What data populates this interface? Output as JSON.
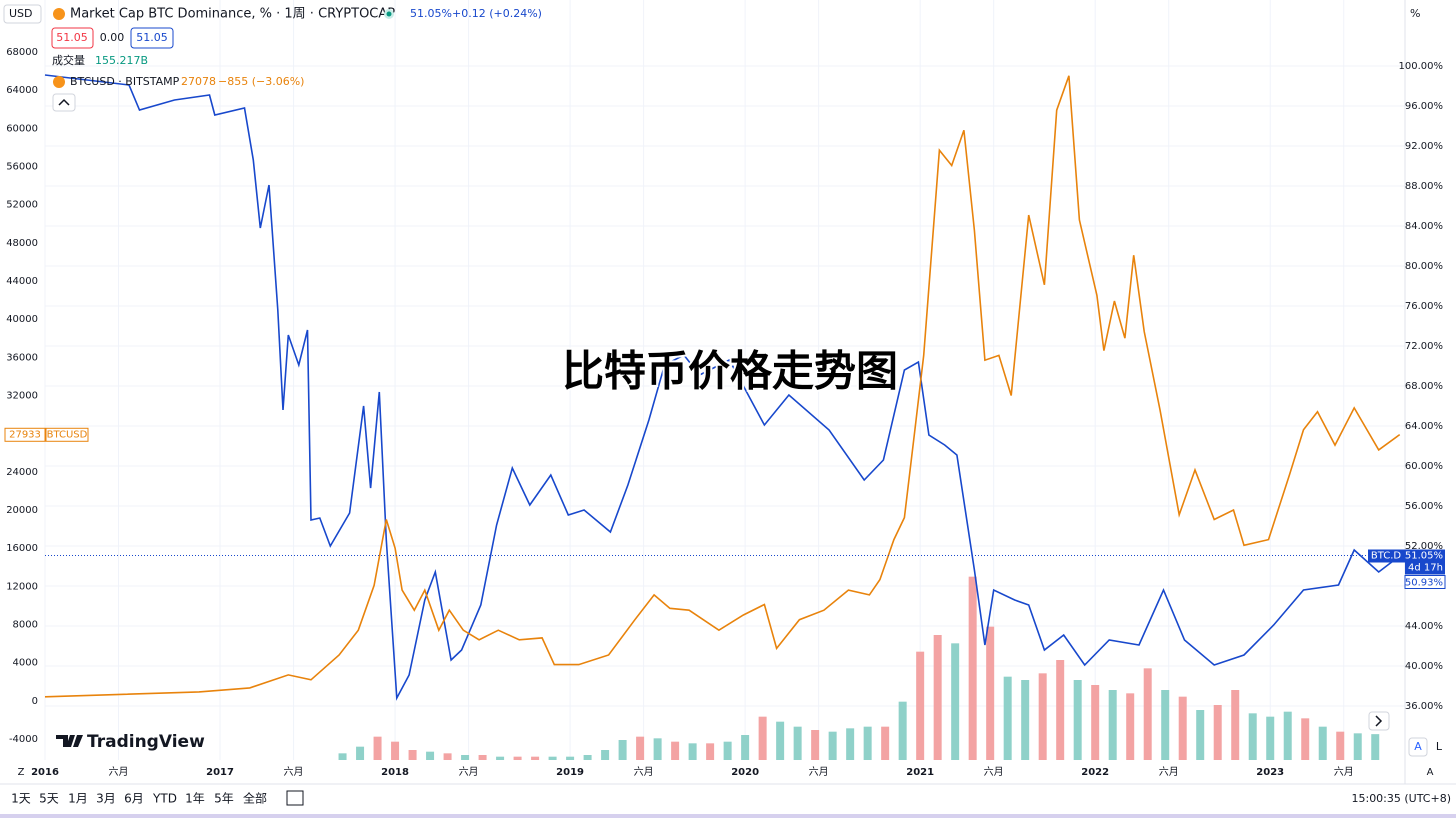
{
  "chart_data": {
    "type": "line",
    "title": "比特币价格走势图",
    "currency": "USD",
    "y2_unit": "%",
    "grid": true,
    "xlim": [
      2016.0,
      2023.77
    ],
    "xticks": [
      {
        "value": 2016.0,
        "label": "2016"
      },
      {
        "value": 2016.42,
        "label": "六月"
      },
      {
        "value": 2017.0,
        "label": "2017"
      },
      {
        "value": 2017.42,
        "label": "六月"
      },
      {
        "value": 2018.0,
        "label": "2018"
      },
      {
        "value": 2018.42,
        "label": "六月"
      },
      {
        "value": 2019.0,
        "label": "2019"
      },
      {
        "value": 2019.42,
        "label": "六月"
      },
      {
        "value": 2020.0,
        "label": "2020"
      },
      {
        "value": 2020.42,
        "label": "六月"
      },
      {
        "value": 2021.0,
        "label": "2021"
      },
      {
        "value": 2021.42,
        "label": "六月"
      },
      {
        "value": 2022.0,
        "label": "2022"
      },
      {
        "value": 2022.42,
        "label": "六月"
      },
      {
        "value": 2023.0,
        "label": "2023"
      },
      {
        "value": 2023.42,
        "label": "六月"
      }
    ],
    "ylim": [
      -6200,
      70300
    ],
    "yticks": [
      -4000,
      0,
      4000,
      8000,
      12000,
      16000,
      20000,
      24000,
      28000,
      32000,
      36000,
      40000,
      44000,
      48000,
      52000,
      56000,
      60000,
      64000,
      68000
    ],
    "y2lim": [
      30.6,
      103.6
    ],
    "y2ticks": [
      {
        "value": 36,
        "label": "36.00%"
      },
      {
        "value": 40,
        "label": "40.00%"
      },
      {
        "value": 44,
        "label": "44.00%"
      },
      {
        "value": 48,
        "label": "48.00%"
      },
      {
        "value": 52,
        "label": "52.00%"
      },
      {
        "value": 56,
        "label": "56.00%"
      },
      {
        "value": 60,
        "label": "60.00%"
      },
      {
        "value": 64,
        "label": "64.00%"
      },
      {
        "value": 68,
        "label": "68.00%"
      },
      {
        "value": 72,
        "label": "72.00%"
      },
      {
        "value": 76,
        "label": "76.00%"
      },
      {
        "value": 80,
        "label": "80.00%"
      },
      {
        "value": 84,
        "label": "84.00%"
      },
      {
        "value": 88,
        "label": "88.00%"
      },
      {
        "value": 92,
        "label": "92.00%"
      },
      {
        "value": 96,
        "label": "96.00%"
      },
      {
        "value": 100,
        "label": "100.00%"
      }
    ],
    "series": [
      {
        "name": "Market Cap BTC Dominance, % · 1周 · CRYPTOCAP",
        "color": "#1848cc",
        "axis": "y2",
        "x": [
          2016.0,
          2016.48,
          2016.54,
          2016.74,
          2016.94,
          2016.97,
          2017.14,
          2017.19,
          2017.23,
          2017.28,
          2017.33,
          2017.36,
          2017.39,
          2017.45,
          2017.5,
          2017.52,
          2017.57,
          2017.63,
          2017.74,
          2017.82,
          2017.86,
          2017.91,
          2017.95,
          2018.01,
          2018.08,
          2018.17,
          2018.23,
          2018.32,
          2018.38,
          2018.49,
          2018.58,
          2018.67,
          2018.77,
          2018.89,
          2018.99,
          2019.08,
          2019.23,
          2019.33,
          2019.45,
          2019.54,
          2019.65,
          2019.74,
          2019.91,
          2020.11,
          2020.25,
          2020.48,
          2020.68,
          2020.79,
          2020.91,
          2020.99,
          2021.05,
          2021.14,
          2021.21,
          2021.31,
          2021.37,
          2021.42,
          2021.54,
          2021.62,
          2021.71,
          2021.82,
          2021.94,
          2022.08,
          2022.25,
          2022.39,
          2022.51,
          2022.68,
          2022.85,
          2023.02,
          2023.19,
          2023.39,
          2023.48,
          2023.62,
          2023.74
        ],
        "values": [
          99.1,
          98.1,
          95.6,
          96.6,
          97.1,
          95.1,
          95.8,
          90.6,
          83.8,
          88.1,
          75.6,
          65.6,
          73.1,
          70.1,
          73.6,
          54.6,
          54.8,
          52.0,
          55.3,
          66.0,
          57.8,
          67.4,
          52.6,
          36.8,
          39.1,
          46.6,
          49.4,
          40.6,
          41.6,
          46.1,
          54.1,
          59.8,
          56.1,
          59.1,
          55.1,
          55.6,
          53.4,
          58.1,
          64.6,
          70.1,
          71.1,
          69.1,
          70.6,
          64.1,
          67.1,
          63.6,
          58.6,
          60.6,
          69.6,
          70.4,
          63.1,
          62.1,
          61.1,
          49.6,
          42.1,
          47.6,
          46.6,
          46.1,
          41.6,
          43.1,
          40.1,
          42.6,
          42.1,
          47.6,
          42.6,
          40.1,
          41.1,
          44.1,
          47.6,
          48.1,
          51.6,
          49.4,
          51.0
        ],
        "last_value": 51.05,
        "last_value_label": "51.05%",
        "tag": "BTC.D",
        "countdown": "4d 17h",
        "prev_close_label": "50.93%"
      },
      {
        "name": "BTCUSD · BITSTAMP",
        "color": "#e8830c",
        "x": [
          2016.0,
          2016.88,
          2017.17,
          2017.39,
          2017.52,
          2017.68,
          2017.79,
          2017.88,
          2017.95,
          2018.0,
          2018.04,
          2018.11,
          2018.17,
          2018.25,
          2018.31,
          2018.39,
          2018.48,
          2018.59,
          2018.71,
          2018.84,
          2018.91,
          2019.05,
          2019.22,
          2019.37,
          2019.48,
          2019.57,
          2019.68,
          2019.85,
          2019.99,
          2020.11,
          2020.18,
          2020.31,
          2020.45,
          2020.59,
          2020.71,
          2020.77,
          2020.85,
          2020.91,
          2020.97,
          2021.02,
          2021.11,
          2021.18,
          2021.25,
          2021.31,
          2021.37,
          2021.45,
          2021.52,
          2021.62,
          2021.71,
          2021.78,
          2021.85,
          2021.91,
          2022.01,
          2022.05,
          2022.11,
          2022.17,
          2022.22,
          2022.28,
          2022.37,
          2022.48,
          2022.57,
          2022.68,
          2022.79,
          2022.85,
          2022.99,
          2023.11,
          2023.19,
          2023.27,
          2023.37,
          2023.48,
          2023.62,
          2023.74
        ],
        "values": [
          420,
          940,
          1360,
          2720,
          2200,
          4800,
          7400,
          12100,
          19000,
          16000,
          11600,
          9500,
          11600,
          7400,
          9500,
          7400,
          6400,
          7400,
          6400,
          6600,
          3800,
          3800,
          4800,
          8500,
          11100,
          9700,
          9500,
          7400,
          9000,
          10100,
          5500,
          8500,
          9500,
          11600,
          11100,
          12700,
          16900,
          19200,
          28400,
          36200,
          57700,
          56100,
          59800,
          49300,
          35700,
          36200,
          32000,
          50900,
          43600,
          61900,
          65500,
          50400,
          42500,
          36700,
          41900,
          38000,
          46700,
          38700,
          30500,
          19500,
          24200,
          19000,
          20000,
          16300,
          16900,
          23700,
          28400,
          30300,
          26800,
          30700,
          26300,
          27900
        ],
        "last_value": 27933,
        "tag": "BTCUSD"
      }
    ],
    "volume": {
      "name": "成交量",
      "last_label": "155.217B",
      "ylim": [
        0,
        1800
      ],
      "x": [
        2017.7,
        2017.8,
        2017.9,
        2018.0,
        2018.1,
        2018.2,
        2018.3,
        2018.4,
        2018.5,
        2018.6,
        2018.7,
        2018.8,
        2018.9,
        2019.0,
        2019.1,
        2019.2,
        2019.3,
        2019.4,
        2019.5,
        2019.6,
        2019.7,
        2019.8,
        2019.9,
        2020.0,
        2020.1,
        2020.2,
        2020.3,
        2020.4,
        2020.5,
        2020.6,
        2020.7,
        2020.8,
        2020.9,
        2021.0,
        2021.1,
        2021.2,
        2021.3,
        2021.4,
        2021.5,
        2021.6,
        2021.7,
        2021.8,
        2021.9,
        2022.0,
        2022.1,
        2022.2,
        2022.3,
        2022.4,
        2022.5,
        2022.6,
        2022.7,
        2022.8,
        2022.9,
        2023.0,
        2023.1,
        2023.2,
        2023.3,
        2023.4,
        2023.5,
        2023.6
      ],
      "values": [
        40,
        80,
        140,
        110,
        60,
        50,
        40,
        30,
        30,
        20,
        20,
        20,
        20,
        20,
        30,
        60,
        120,
        140,
        130,
        110,
        100,
        100,
        110,
        150,
        260,
        230,
        200,
        180,
        170,
        190,
        200,
        200,
        350,
        650,
        750,
        700,
        1100,
        800,
        500,
        480,
        520,
        600,
        480,
        450,
        420,
        400,
        550,
        420,
        380,
        300,
        330,
        420,
        280,
        260,
        290,
        250,
        200,
        170,
        160,
        155.217
      ],
      "colors": [
        "#8fd1c9",
        "#8fd1c9",
        "#f3a3a3",
        "#f3a3a3",
        "#f3a3a3",
        "#8fd1c9",
        "#f3a3a3",
        "#8fd1c9",
        "#f3a3a3",
        "#8fd1c9",
        "#f3a3a3",
        "#f3a3a3",
        "#8fd1c9",
        "#8fd1c9",
        "#8fd1c9",
        "#8fd1c9",
        "#8fd1c9",
        "#f3a3a3",
        "#8fd1c9",
        "#f3a3a3",
        "#8fd1c9",
        "#f3a3a3",
        "#8fd1c9",
        "#8fd1c9",
        "#f3a3a3",
        "#8fd1c9",
        "#8fd1c9",
        "#f3a3a3",
        "#8fd1c9",
        "#8fd1c9",
        "#8fd1c9",
        "#f3a3a3",
        "#8fd1c9",
        "#f3a3a3",
        "#f3a3a3",
        "#8fd1c9",
        "#f3a3a3",
        "#f3a3a3",
        "#8fd1c9",
        "#8fd1c9",
        "#f3a3a3",
        "#f3a3a3",
        "#8fd1c9",
        "#f3a3a3",
        "#8fd1c9",
        "#f3a3a3",
        "#f3a3a3",
        "#8fd1c9",
        "#f3a3a3",
        "#8fd1c9",
        "#f3a3a3",
        "#f3a3a3",
        "#8fd1c9",
        "#8fd1c9",
        "#8fd1c9",
        "#f3a3a3",
        "#8fd1c9",
        "#f3a3a3",
        "#8fd1c9",
        "#8fd1c9"
      ]
    }
  },
  "legend": {
    "dominance_value": "51.05%",
    "dominance_change": "+0.12 (+0.24%)",
    "ohlc": [
      "51.05",
      "0.00",
      "51.05"
    ],
    "btc_value": "27078",
    "btc_change": "−855 (−3.06%)"
  },
  "brand": "TradingView",
  "buttons": {
    "auto": "A",
    "log": "L",
    "zoom": "Z"
  },
  "toolbar": {
    "ranges": [
      "1天",
      "5天",
      "1月",
      "3月",
      "6月",
      "YTD",
      "1年",
      "5年",
      "全部"
    ],
    "clock": "15:00:35 (UTC+8)"
  }
}
